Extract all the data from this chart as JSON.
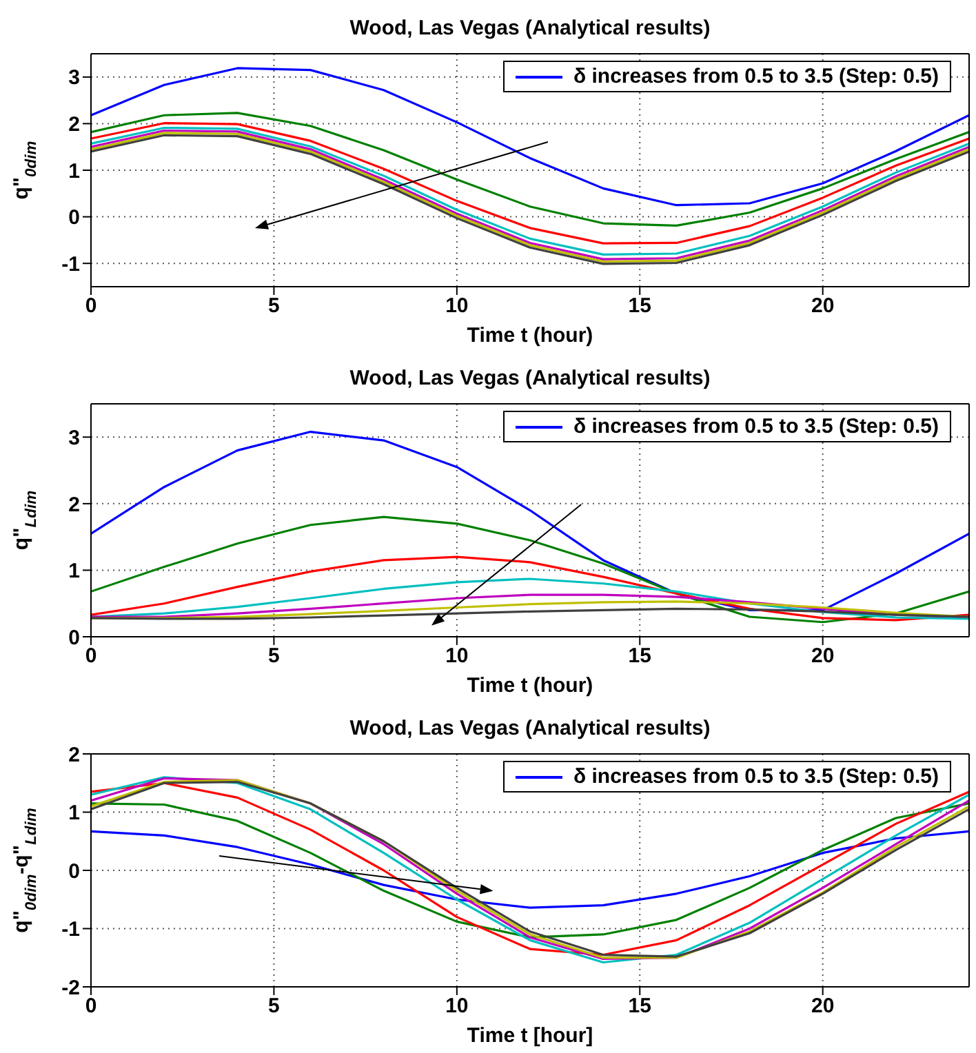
{
  "chart_data": [
    {
      "type": "line",
      "title": "Wood, Las Vegas (Analytical results)",
      "xlabel": "Time t (hour)",
      "ylabel": "q\"$_{0dim}$",
      "x": [
        0,
        2,
        4,
        6,
        8,
        10,
        12,
        14,
        16,
        18,
        20,
        22,
        24
      ],
      "xlim": [
        0,
        24
      ],
      "xticks": [
        0,
        5,
        10,
        15,
        20
      ],
      "ylim": [
        -1.5,
        3.5
      ],
      "yticks": [
        -1,
        0,
        1,
        2,
        3
      ],
      "grid": true,
      "legend": "top right",
      "marker": "none",
      "line_style": "solid",
      "series": [
        {
          "name": "δ increases from 0.5 to 3.5 (Step: 0.5)",
          "color": "#0000ff",
          "values": [
            2.18,
            2.83,
            3.19,
            3.15,
            2.72,
            2.03,
            1.26,
            0.61,
            0.25,
            0.29,
            0.72,
            1.41,
            2.18
          ]
        },
        {
          "color": "#008000",
          "values": [
            1.82,
            2.18,
            2.23,
            1.95,
            1.43,
            0.8,
            0.22,
            -0.14,
            -0.19,
            0.09,
            0.61,
            1.24,
            1.82
          ]
        },
        {
          "color": "#ff0000",
          "values": [
            1.68,
            2.01,
            1.99,
            1.63,
            1.03,
            0.34,
            -0.24,
            -0.57,
            -0.56,
            -0.2,
            0.41,
            1.1,
            1.68
          ]
        },
        {
          "color": "#00bfbf",
          "values": [
            1.57,
            1.91,
            1.89,
            1.51,
            0.88,
            0.15,
            -0.47,
            -0.81,
            -0.79,
            -0.41,
            0.22,
            0.95,
            1.57
          ]
        },
        {
          "color": "#bf00bf",
          "values": [
            1.5,
            1.85,
            1.83,
            1.45,
            0.8,
            0.07,
            -0.56,
            -0.91,
            -0.89,
            -0.51,
            0.14,
            0.87,
            1.5
          ]
        },
        {
          "color": "#bfbf00",
          "values": [
            1.45,
            1.8,
            1.78,
            1.4,
            0.75,
            0.02,
            -0.61,
            -0.96,
            -0.94,
            -0.56,
            0.09,
            0.82,
            1.45
          ]
        },
        {
          "color": "#404040",
          "values": [
            1.4,
            1.75,
            1.73,
            1.35,
            0.7,
            -0.03,
            -0.66,
            -1.01,
            -0.99,
            -0.61,
            0.04,
            0.77,
            1.4
          ]
        }
      ]
    },
    {
      "type": "line",
      "title": "Wood, Las Vegas (Analytical results)",
      "xlabel": "Time t (hour)",
      "ylabel": "q\"$_{Ldim}$",
      "x": [
        0,
        2,
        4,
        6,
        8,
        10,
        12,
        14,
        16,
        18,
        20,
        22,
        24
      ],
      "xlim": [
        0,
        24
      ],
      "xticks": [
        0,
        5,
        10,
        15,
        20
      ],
      "ylim": [
        0,
        3.5
      ],
      "yticks": [
        0,
        1,
        2,
        3
      ],
      "grid": true,
      "legend": "top right",
      "marker": "none",
      "line_style": "solid",
      "series": [
        {
          "name": "δ increases from 0.5 to 3.5 (Step: 0.5)",
          "color": "#0000ff",
          "values": [
            1.55,
            2.25,
            2.8,
            3.08,
            2.95,
            2.55,
            1.9,
            1.15,
            0.65,
            0.4,
            0.4,
            0.95,
            1.55
          ]
        },
        {
          "color": "#008000",
          "values": [
            0.68,
            1.05,
            1.4,
            1.68,
            1.8,
            1.7,
            1.45,
            1.1,
            0.65,
            0.3,
            0.22,
            0.35,
            0.68
          ]
        },
        {
          "color": "#ff0000",
          "values": [
            0.33,
            0.5,
            0.75,
            0.98,
            1.15,
            1.2,
            1.12,
            0.9,
            0.65,
            0.42,
            0.28,
            0.25,
            0.33
          ]
        },
        {
          "color": "#00bfbf",
          "values": [
            0.3,
            0.35,
            0.45,
            0.58,
            0.72,
            0.82,
            0.87,
            0.8,
            0.68,
            0.5,
            0.37,
            0.29,
            0.27
          ]
        },
        {
          "color": "#bf00bf",
          "values": [
            0.3,
            0.3,
            0.35,
            0.42,
            0.5,
            0.58,
            0.63,
            0.63,
            0.6,
            0.52,
            0.42,
            0.33,
            0.3
          ]
        },
        {
          "color": "#bfbf00",
          "values": [
            0.28,
            0.28,
            0.3,
            0.34,
            0.39,
            0.44,
            0.49,
            0.52,
            0.53,
            0.5,
            0.44,
            0.36,
            0.3
          ]
        },
        {
          "color": "#404040",
          "values": [
            0.28,
            0.27,
            0.27,
            0.29,
            0.32,
            0.35,
            0.38,
            0.4,
            0.42,
            0.41,
            0.38,
            0.33,
            0.3
          ]
        }
      ]
    },
    {
      "type": "line",
      "title": "Wood, Las Vegas (Analytical results)",
      "xlabel": "Time t [hour]",
      "ylabel": "q\"$_{0dim}$-q\"$_{Ldim}$",
      "x": [
        0,
        2,
        4,
        6,
        8,
        10,
        12,
        14,
        16,
        18,
        20,
        22,
        24
      ],
      "xlim": [
        0,
        24
      ],
      "xticks": [
        0,
        5,
        10,
        15,
        20
      ],
      "ylim": [
        -2,
        2
      ],
      "yticks": [
        -2,
        -1,
        0,
        1,
        2
      ],
      "grid": true,
      "legend": "top right",
      "marker": "none",
      "line_style": "solid",
      "series": [
        {
          "name": "δ increases from 0.5 to 3.5 (Step: 0.5)",
          "color": "#0000ff",
          "values": [
            0.67,
            0.6,
            0.4,
            0.1,
            -0.25,
            -0.5,
            -0.64,
            -0.6,
            -0.4,
            -0.1,
            0.3,
            0.55,
            0.67
          ]
        },
        {
          "color": "#008000",
          "values": [
            1.15,
            1.13,
            0.85,
            0.3,
            -0.35,
            -0.88,
            -1.15,
            -1.1,
            -0.85,
            -0.3,
            0.35,
            0.9,
            1.15
          ]
        },
        {
          "color": "#ff0000",
          "values": [
            1.35,
            1.5,
            1.25,
            0.7,
            0,
            -0.8,
            -1.35,
            -1.45,
            -1.2,
            -0.6,
            0.1,
            0.8,
            1.35
          ]
        },
        {
          "color": "#00bfbf",
          "values": [
            1.3,
            1.6,
            1.5,
            1.05,
            0.3,
            -0.5,
            -1.2,
            -1.58,
            -1.45,
            -0.9,
            -0.15,
            0.6,
            1.3
          ]
        },
        {
          "color": "#bf00bf",
          "values": [
            1.2,
            1.58,
            1.55,
            1.15,
            0.45,
            -0.4,
            -1.15,
            -1.52,
            -1.5,
            -1,
            -0.3,
            0.45,
            1.2
          ]
        },
        {
          "color": "#bfbf00",
          "values": [
            1.1,
            1.52,
            1.55,
            1.15,
            0.5,
            -0.35,
            -1.1,
            -1.5,
            -1.5,
            -1.05,
            -0.38,
            0.4,
            1.1
          ]
        },
        {
          "color": "#404040",
          "values": [
            1.05,
            1.5,
            1.52,
            1.15,
            0.5,
            -0.3,
            -1.05,
            -1.45,
            -1.48,
            -1.08,
            -0.4,
            0.35,
            1.05
          ]
        }
      ]
    }
  ]
}
